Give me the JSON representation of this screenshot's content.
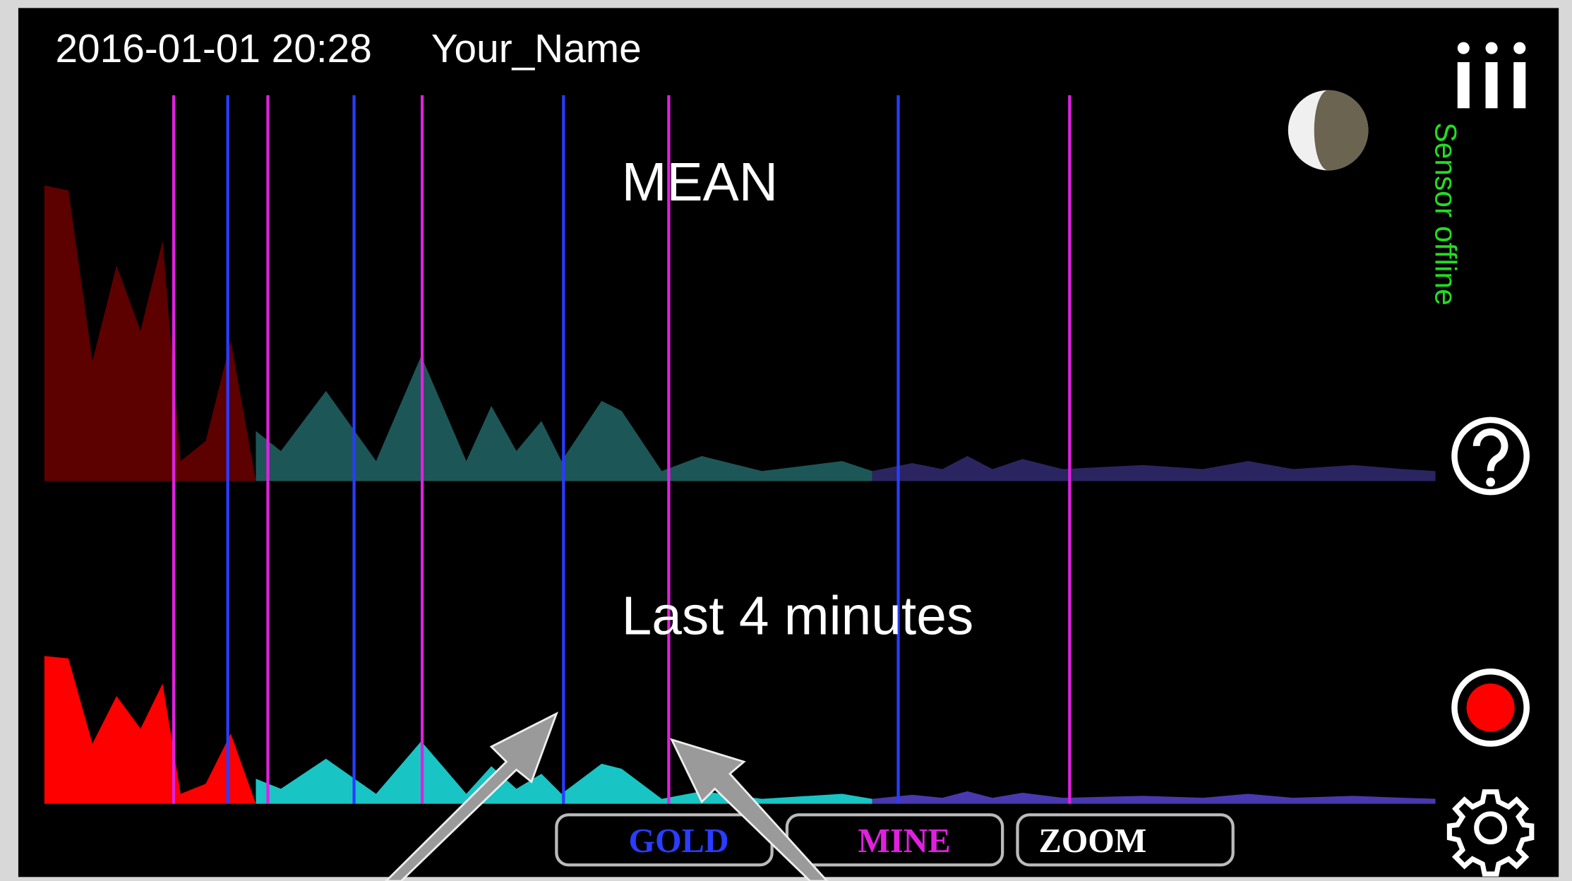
{
  "header": {
    "datetime": "2016-01-01 20:28",
    "user": "Your_Name"
  },
  "panels": [
    {
      "label": "MEAN"
    },
    {
      "label": "Last 4 minutes"
    }
  ],
  "status": "Sensor offline",
  "buttons": [
    "GOLD",
    "MINE",
    "ZOOM"
  ]
}
